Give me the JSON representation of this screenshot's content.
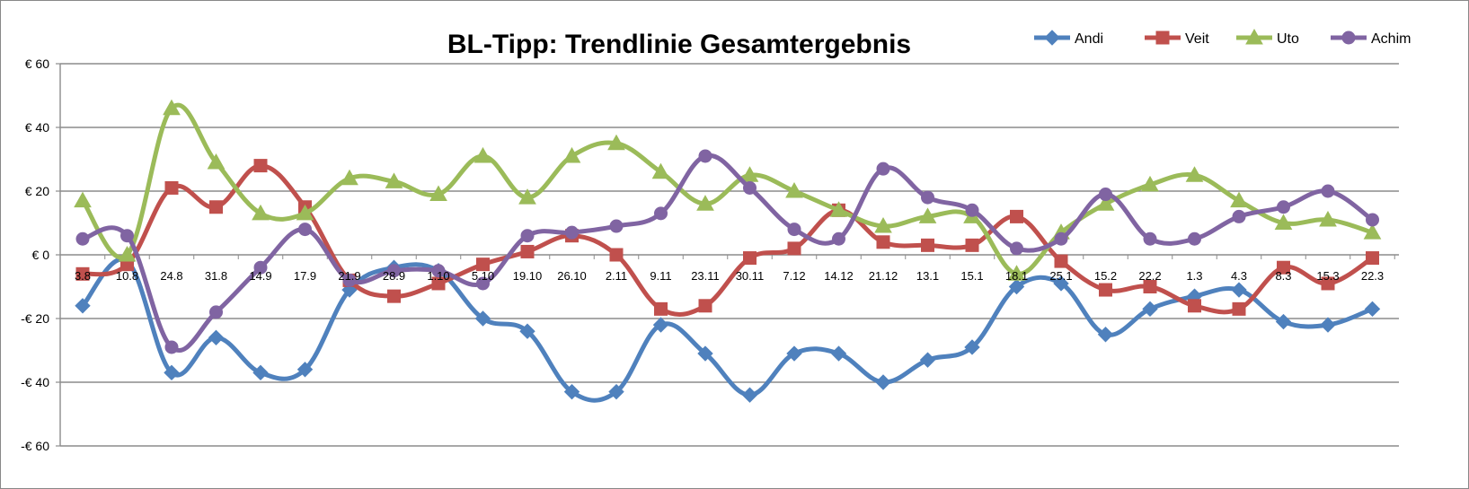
{
  "chart_data": {
    "type": "line",
    "title": "BL-Tipp: Trendlinie Gesamtergebnis",
    "xlabel": "",
    "ylabel": "",
    "ylim": [
      -60,
      60
    ],
    "yticks": [
      60,
      40,
      20,
      0,
      -20,
      -40,
      -60
    ],
    "ytick_labels": [
      "€ 60",
      "€ 40",
      "€ 20",
      "€ 0",
      "-€ 20",
      "-€ 40",
      "-€ 60"
    ],
    "grid": true,
    "legend_position": "top-right",
    "smooth": true,
    "categories": [
      "3.8",
      "10.8",
      "24.8",
      "31.8",
      "14.9",
      "17.9",
      "21.9",
      "28.9",
      "1.10",
      "5.10",
      "19.10",
      "26.10",
      "2.11",
      "9.11",
      "23.11",
      "30.11",
      "7.12",
      "14.12",
      "21.12",
      "13.1",
      "15.1",
      "18.1",
      "25.1",
      "15.2",
      "22.2",
      "1.3",
      "4.3",
      "8.3",
      "15.3",
      "22.3"
    ],
    "series": [
      {
        "name": "Andi",
        "color": "#4F81BD",
        "marker": "diamond",
        "values": [
          -16,
          -2,
          -37,
          -26,
          -37,
          -36,
          -11,
          -4,
          -5,
          -20,
          -24,
          -43,
          -43,
          -22,
          -31,
          -44,
          -31,
          -31,
          -40,
          -33,
          -29,
          -10,
          -9,
          -25,
          -17,
          -13,
          -11,
          -21,
          -22,
          -17
        ]
      },
      {
        "name": "Veit",
        "color": "#C0504D",
        "marker": "square",
        "values": [
          -6,
          -3,
          21,
          15,
          28,
          15,
          -8,
          -13,
          -9,
          -3,
          1,
          6,
          0,
          -17,
          -16,
          -1,
          2,
          14,
          4,
          3,
          3,
          12,
          -2,
          -11,
          -10,
          -16,
          -17,
          -4,
          -9,
          -1
        ]
      },
      {
        "name": "Uto",
        "color": "#9BBB59",
        "marker": "triangle",
        "values": [
          17,
          0,
          46,
          29,
          13,
          13,
          24,
          23,
          19,
          31,
          18,
          31,
          35,
          26,
          16,
          25,
          20,
          14,
          9,
          12,
          12,
          -6,
          7,
          16,
          22,
          25,
          17,
          10,
          11,
          7
        ]
      },
      {
        "name": "Achim",
        "color": "#8064A2",
        "marker": "circle",
        "values": [
          5,
          6,
          -29,
          -18,
          -4,
          8,
          -8,
          -5,
          -5,
          -9,
          6,
          7,
          9,
          13,
          31,
          21,
          8,
          5,
          27,
          18,
          14,
          2,
          5,
          19,
          5,
          5,
          12,
          15,
          20,
          11
        ]
      }
    ]
  }
}
